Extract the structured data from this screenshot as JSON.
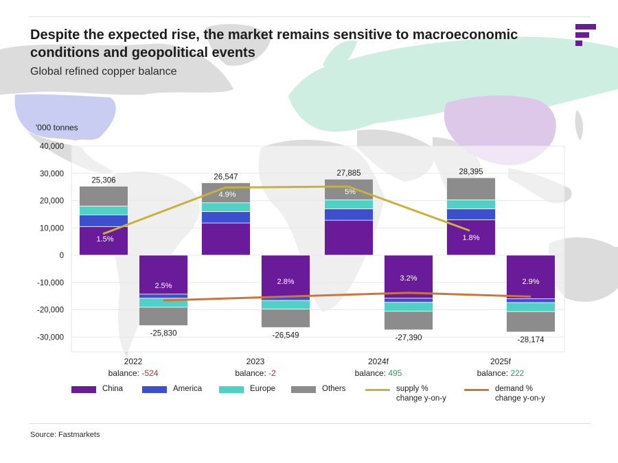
{
  "header": {
    "title": "Despite the expected rise, the market remains sensitive to macroeconomic conditions and geopolitical events",
    "subtitle": "Global refined copper balance"
  },
  "footer": {
    "source": "Source: Fastmarkets"
  },
  "colors": {
    "china": "#6a1b9a",
    "america": "#3b4fcf",
    "europe": "#4fd1c5",
    "others": "#8c8c8c",
    "supply_line": "#c9b23a",
    "demand_line": "#c7783a",
    "positive_balance": "#2e9a5c",
    "negative_balance": "#b53030",
    "map_land": "#dcdcdc",
    "map_usa": "#c9cdf2",
    "map_europe_russia": "#cdeee0",
    "map_china": "#ddc8ea"
  },
  "legend": [
    {
      "key": "china",
      "label": "China",
      "kind": "swatch"
    },
    {
      "key": "america",
      "label": "America",
      "kind": "swatch"
    },
    {
      "key": "europe",
      "label": "Europe",
      "kind": "swatch"
    },
    {
      "key": "others",
      "label": "Others",
      "kind": "swatch"
    },
    {
      "key": "supply_line",
      "label": "supply %\nchange y-on-y",
      "kind": "line"
    },
    {
      "key": "demand_line",
      "label": "demand %\nchange y-on-y",
      "kind": "line"
    }
  ],
  "chart_data": {
    "type": "bar",
    "title": "Global refined copper balance",
    "ylabel": "'000 tonnes",
    "ylim": [
      -30000,
      40000
    ],
    "yticks": [
      40000,
      30000,
      20000,
      10000,
      0,
      -10000,
      -20000,
      -30000
    ],
    "ytick_labels": [
      "40,000",
      "30,000",
      "20,000",
      "10,000",
      "0",
      "-10,000",
      "-20,000",
      "-30,000"
    ],
    "categories": [
      "2022",
      "2023",
      "2024f",
      "2025f"
    ],
    "balance_label": "balance:",
    "balances": [
      "-524",
      "-2",
      "495",
      "222"
    ],
    "supply": {
      "totals": [
        25306,
        26547,
        27885,
        28395
      ],
      "total_labels": [
        "25,306",
        "26,547",
        "27,885",
        "28,395"
      ],
      "series": [
        {
          "name": "China",
          "values": [
            10500,
            11800,
            12800,
            13000
          ]
        },
        {
          "name": "America",
          "values": [
            4300,
            4200,
            4200,
            4000
          ]
        },
        {
          "name": "Europe",
          "values": [
            3200,
            3200,
            3300,
            3300
          ]
        },
        {
          "name": "Others",
          "values": [
            7306,
            7347,
            7585,
            8095
          ]
        }
      ]
    },
    "demand": {
      "totals": [
        -25830,
        -26549,
        -27390,
        -28174
      ],
      "total_labels": [
        "-25,830",
        "-26,549",
        "-27,390",
        "-28,174"
      ],
      "series": [
        {
          "name": "China",
          "values": [
            -14300,
            -15200,
            -15800,
            -16000
          ]
        },
        {
          "name": "America",
          "values": [
            -1500,
            -1400,
            -1500,
            -1400
          ]
        },
        {
          "name": "Europe",
          "values": [
            -3300,
            -3200,
            -3300,
            -3300
          ]
        },
        {
          "name": "Others",
          "values": [
            -6730,
            -6749,
            -6790,
            -7474
          ]
        }
      ]
    },
    "supply_change": {
      "labels": [
        "1.5%",
        "4.9%",
        "5%",
        "1.8%"
      ],
      "line_values": [
        7800,
        24800,
        25200,
        9000
      ]
    },
    "demand_change": {
      "labels": [
        "2.5%",
        "2.8%",
        "3.2%",
        "2.9%"
      ],
      "line_values": [
        -16600,
        -15200,
        -13800,
        -15200
      ]
    }
  }
}
